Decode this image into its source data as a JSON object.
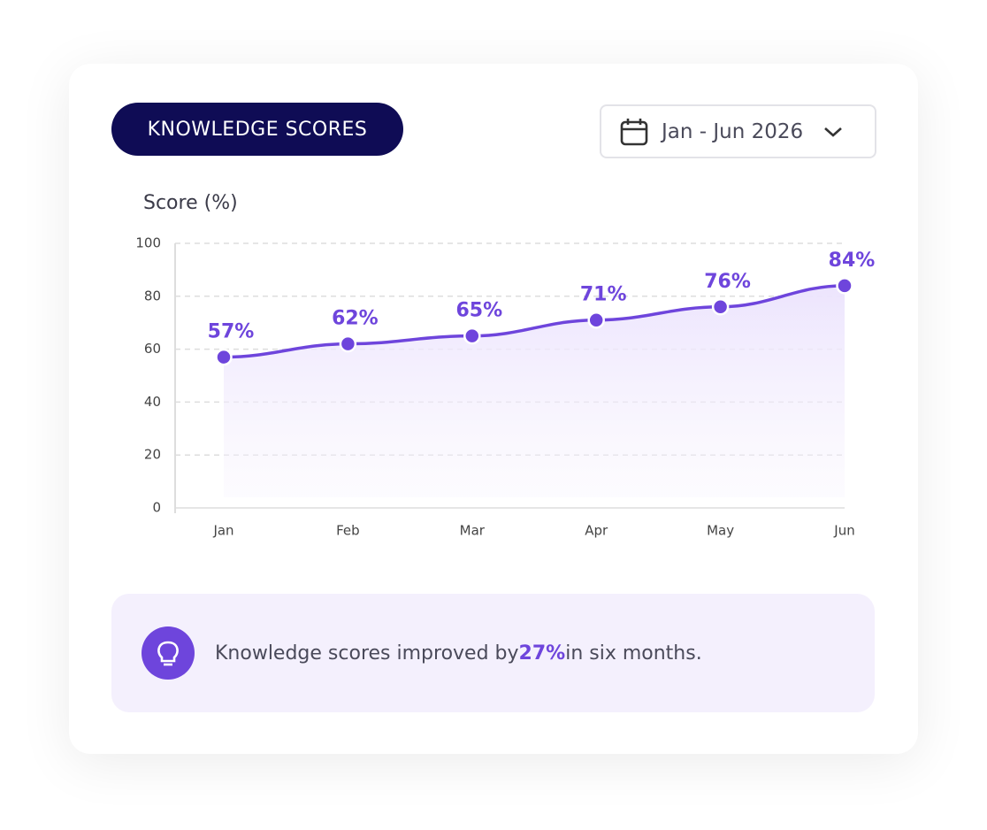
{
  "header": {
    "badge": "KNOWLEDGE SCORES",
    "date_range": "Jan - Jun 2026"
  },
  "chart_data": {
    "type": "line",
    "y_label": "Score (%)",
    "categories": [
      "Jan",
      "Feb",
      "Mar",
      "Apr",
      "May",
      "Jun"
    ],
    "values": [
      57,
      62,
      65,
      71,
      76,
      84
    ],
    "value_labels": [
      "57%",
      "62%",
      "65%",
      "71%",
      "76%",
      "84%"
    ],
    "color": "#6e45dc",
    "ylim": [
      0,
      100
    ],
    "yticks": [
      0,
      20,
      40,
      60,
      80,
      100
    ],
    "grid": true,
    "area": true
  },
  "insight": {
    "before": "Knowledge scores improved by",
    "highlight": "27%",
    "after": "in six months."
  }
}
